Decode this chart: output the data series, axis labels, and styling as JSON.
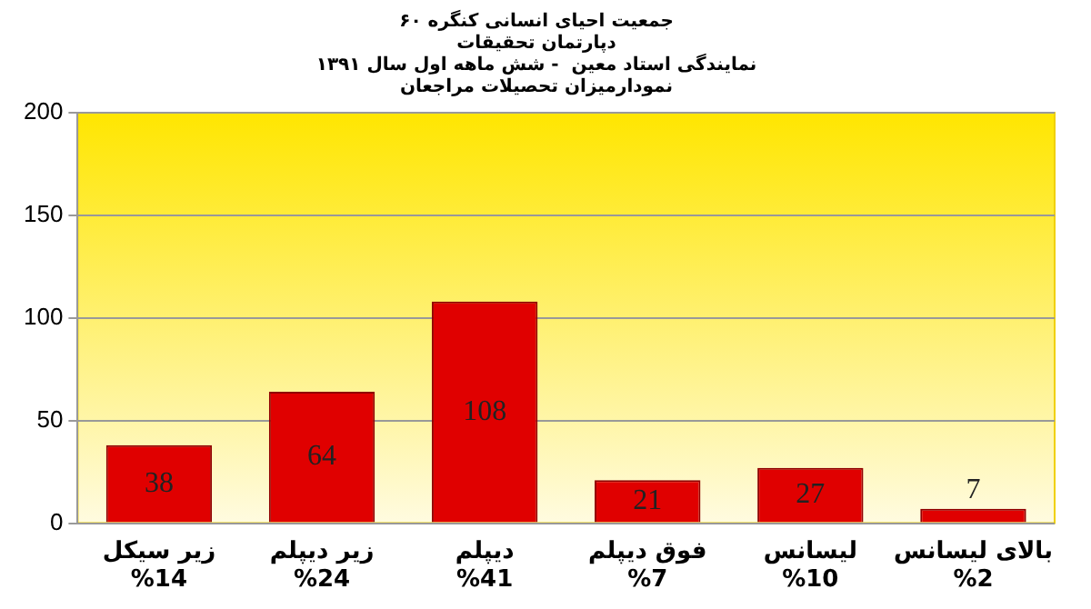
{
  "chart_data": {
    "type": "bar",
    "title": "جمعیت احیای انسانی کنگره ۶۰\nدپارتمان تحقیقات\nنمایندگی استاد معین  - شش ماهه اول سال ۱۳۹۱\nنمودارمیزان تحصیلات مراجعان",
    "categories": [
      "زیر سیکل\n%14",
      "زیر دیپلم\n%24",
      "دیپلم\n%41",
      "فوق دیپلم\n%7",
      "لیسانس\n%10",
      "بالای لیسانس\n%2"
    ],
    "values": [
      38,
      64,
      108,
      21,
      27,
      7
    ],
    "color": "#e00000",
    "ylim": [
      0,
      200
    ],
    "yticks": [
      0,
      50,
      100,
      150,
      200
    ],
    "grid": "y",
    "data_labels": true
  }
}
